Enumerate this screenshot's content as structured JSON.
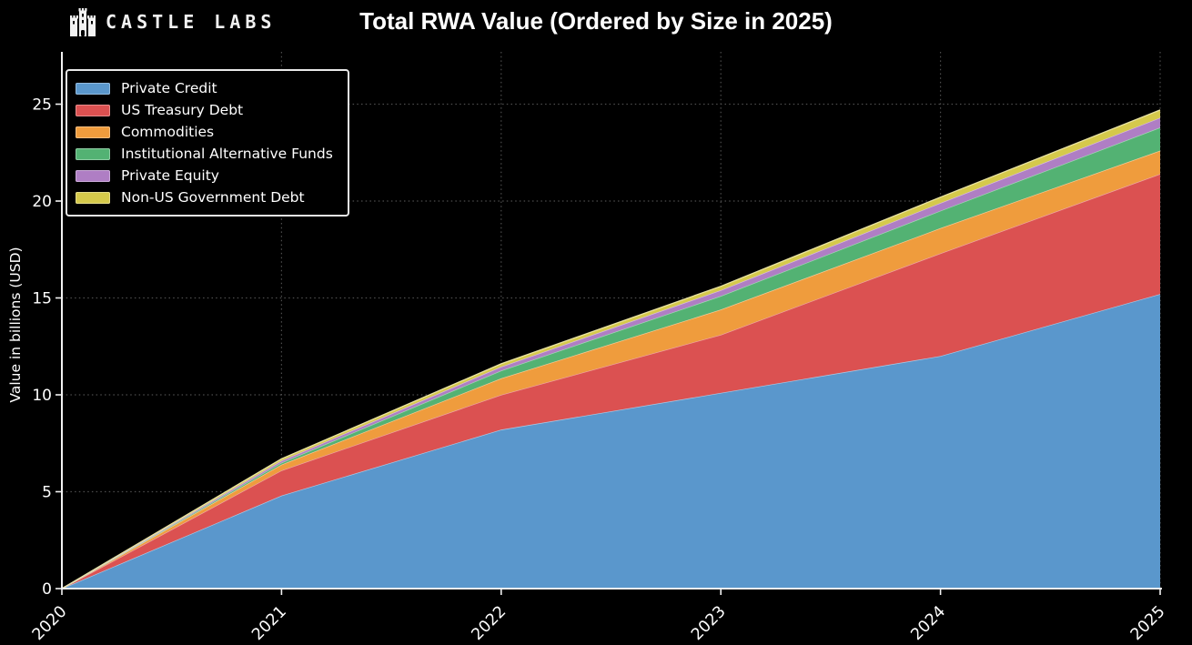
{
  "header": {
    "brand": "CASTLE LABS"
  },
  "chart_data": {
    "type": "area",
    "stacked": true,
    "title": "Total RWA Value (Ordered by Size in 2025)",
    "x": [
      2020,
      2021,
      2022,
      2023,
      2024,
      2025
    ],
    "series": [
      {
        "name": "Private Credit",
        "color": "#5A97CC",
        "values": [
          0,
          4.8,
          8.2,
          10.1,
          12.0,
          15.2
        ]
      },
      {
        "name": "US Treasury Debt",
        "color": "#DB5151",
        "values": [
          0,
          1.3,
          1.8,
          3.0,
          5.3,
          6.2
        ]
      },
      {
        "name": "Commodities",
        "color": "#EF9C3D",
        "values": [
          0,
          0.3,
          0.85,
          1.3,
          1.3,
          1.2
        ]
      },
      {
        "name": "Institutional Alternative Funds",
        "color": "#53B273",
        "values": [
          0,
          0.1,
          0.4,
          0.7,
          0.9,
          1.2
        ]
      },
      {
        "name": "Private Equity",
        "color": "#AF7EC4",
        "values": [
          0,
          0.1,
          0.2,
          0.3,
          0.4,
          0.5
        ]
      },
      {
        "name": "Non-US Government Debt",
        "color": "#D5C94B",
        "values": [
          0,
          0.1,
          0.15,
          0.2,
          0.3,
          0.4
        ]
      }
    ],
    "xlabel": "",
    "ylabel": "Value in billions (USD)",
    "yticks": [
      0,
      5,
      10,
      15,
      20,
      25
    ],
    "ylim": [
      0,
      27.7
    ],
    "xlim": [
      2020,
      2025
    ],
    "grid": "dotted",
    "legend_position": "upper-left",
    "colors": {
      "background": "#000000",
      "axis": "#f2f2f2",
      "grid": "#4d4d4d",
      "text": "#ffffff"
    }
  }
}
